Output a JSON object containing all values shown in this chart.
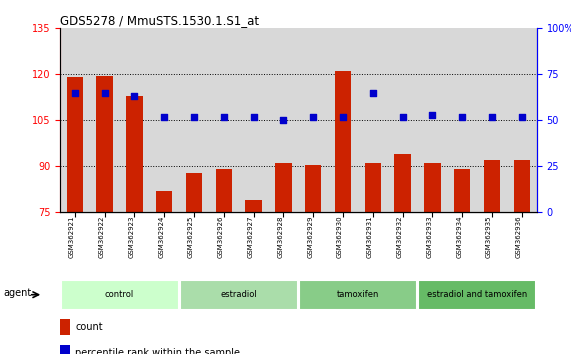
{
  "title": "GDS5278 / MmuSTS.1530.1.S1_at",
  "samples": [
    "GSM362921",
    "GSM362922",
    "GSM362923",
    "GSM362924",
    "GSM362925",
    "GSM362926",
    "GSM362927",
    "GSM362928",
    "GSM362929",
    "GSM362930",
    "GSM362931",
    "GSM362932",
    "GSM362933",
    "GSM362934",
    "GSM362935",
    "GSM362936"
  ],
  "bar_values": [
    119,
    119.5,
    113,
    82,
    88,
    89,
    79,
    91,
    90.5,
    121,
    91,
    94,
    91,
    89,
    92,
    92
  ],
  "percentile_values": [
    65,
    65,
    63,
    52,
    52,
    52,
    52,
    50,
    52,
    52,
    65,
    52,
    53,
    52,
    52,
    52
  ],
  "bar_color": "#cc2200",
  "dot_color": "#0000cc",
  "ylim_left": [
    75,
    135
  ],
  "ylim_right": [
    0,
    100
  ],
  "yticks_left": [
    75,
    90,
    105,
    120,
    135
  ],
  "yticks_right": [
    0,
    25,
    50,
    75,
    100
  ],
  "groups": [
    {
      "label": "control",
      "start": 0,
      "end": 4,
      "color": "#ccffcc"
    },
    {
      "label": "estradiol",
      "start": 4,
      "end": 8,
      "color": "#aaddaa"
    },
    {
      "label": "tamoxifen",
      "start": 8,
      "end": 12,
      "color": "#88cc88"
    },
    {
      "label": "estradiol and tamoxifen",
      "start": 12,
      "end": 16,
      "color": "#66bb66"
    }
  ],
  "legend_count_label": "count",
  "legend_pct_label": "percentile rank within the sample",
  "agent_label": "agent",
  "plot_bg_color": "#d8d8d8"
}
